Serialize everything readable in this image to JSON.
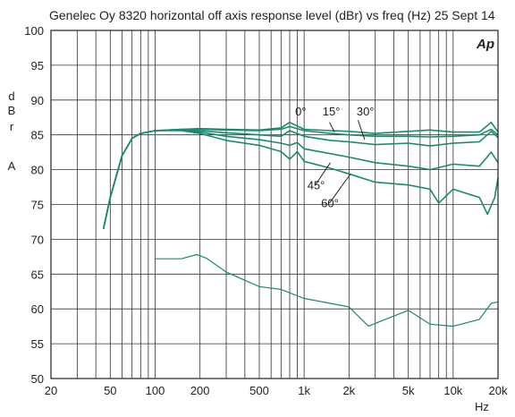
{
  "chart_data": {
    "type": "line",
    "title": "Genelec Oy 8320  horizontal off axis response level (dBr) vs freq (Hz) 25 Sept 14",
    "xlabel": "Hz",
    "ylabel_letters": [
      "d",
      "B",
      "r",
      "A"
    ],
    "logo": "Ap",
    "x_scale": "log",
    "xlim": [
      20,
      20000
    ],
    "ylim": [
      50,
      100
    ],
    "grid": true,
    "line_color": "#1a8a6e",
    "x_ticks": [
      {
        "v": 20,
        "label": "20"
      },
      {
        "v": 50,
        "label": "50"
      },
      {
        "v": 100,
        "label": "100"
      },
      {
        "v": 200,
        "label": "200"
      },
      {
        "v": 500,
        "label": "500"
      },
      {
        "v": 1000,
        "label": "1k"
      },
      {
        "v": 2000,
        "label": "2k"
      },
      {
        "v": 5000,
        "label": "5k"
      },
      {
        "v": 10000,
        "label": "10k"
      },
      {
        "v": 20000,
        "label": "20k"
      }
    ],
    "y_ticks": [
      100,
      95,
      90,
      85,
      80,
      75,
      70,
      65,
      60,
      55,
      50
    ],
    "series": [
      {
        "name": "0°",
        "x": [
          45,
          50,
          60,
          70,
          80,
          100,
          150,
          200,
          300,
          500,
          700,
          800,
          1000,
          1500,
          2000,
          3000,
          5000,
          7000,
          10000,
          15000,
          18000,
          20000
        ],
        "y": [
          71.5,
          76,
          82,
          84.5,
          85.2,
          85.6,
          85.8,
          85.9,
          85.8,
          85.7,
          86.0,
          86.8,
          85.8,
          85.6,
          85.5,
          85.2,
          85.5,
          85.7,
          85.4,
          85.4,
          86.8,
          85.4
        ]
      },
      {
        "name": "15°",
        "x": [
          45,
          50,
          60,
          70,
          80,
          100,
          150,
          200,
          300,
          500,
          700,
          800,
          1000,
          1500,
          2000,
          3000,
          5000,
          7000,
          10000,
          15000,
          18000,
          20000
        ],
        "y": [
          71.5,
          76,
          82,
          84.5,
          85.2,
          85.6,
          85.8,
          85.8,
          85.7,
          85.6,
          85.8,
          86.2,
          85.6,
          85.2,
          85.0,
          84.8,
          84.8,
          84.7,
          84.8,
          85.0,
          85.8,
          85.0
        ]
      },
      {
        "name": "30°",
        "x": [
          45,
          50,
          60,
          70,
          80,
          100,
          150,
          200,
          300,
          500,
          700,
          800,
          1000,
          1500,
          2000,
          3000,
          5000,
          7000,
          10000,
          15000,
          18000,
          20000
        ],
        "y": [
          71.5,
          76,
          82,
          84.5,
          85.2,
          85.6,
          85.7,
          85.6,
          85.3,
          85.0,
          84.8,
          85.6,
          84.8,
          84.2,
          84.0,
          83.6,
          83.8,
          83.4,
          83.8,
          84.0,
          85.5,
          84.6
        ]
      },
      {
        "name": "45°",
        "x": [
          45,
          50,
          60,
          70,
          80,
          100,
          150,
          200,
          300,
          500,
          700,
          800,
          900,
          1000,
          1500,
          2000,
          3000,
          5000,
          7000,
          10000,
          15000,
          18000,
          20000
        ],
        "y": [
          71.5,
          76,
          82,
          84.5,
          85.2,
          85.6,
          85.7,
          85.4,
          84.8,
          84.3,
          83.8,
          83.5,
          83.9,
          83.0,
          82.3,
          81.8,
          81.0,
          80.5,
          80.0,
          80.8,
          80.5,
          82.5,
          81.0
        ]
      },
      {
        "name": "60°",
        "x": [
          45,
          50,
          60,
          70,
          80,
          100,
          150,
          200,
          300,
          500,
          700,
          800,
          900,
          1000,
          1500,
          2000,
          3000,
          5000,
          7000,
          8000,
          10000,
          15000,
          17000,
          19000,
          20000
        ],
        "y": [
          71.5,
          76,
          82,
          84.5,
          85.2,
          85.6,
          85.6,
          85.2,
          84.2,
          83.5,
          82.6,
          81.5,
          82.6,
          81.2,
          80.2,
          79.4,
          78.2,
          77.8,
          77.2,
          75.2,
          77.2,
          76.0,
          73.6,
          76.0,
          78.8
        ]
      },
      {
        "name": "",
        "x": [
          100,
          150,
          190,
          220,
          300,
          500,
          700,
          1000,
          1500,
          2000,
          2700,
          3500,
          5000,
          7000,
          10000,
          15000,
          18000,
          20000
        ],
        "y": [
          67.2,
          67.2,
          67.8,
          67.3,
          65.3,
          63.2,
          62.8,
          61.5,
          60.8,
          60.3,
          57.5,
          58.5,
          59.8,
          57.8,
          57.5,
          58.5,
          60.8,
          61.0
        ]
      }
    ],
    "annotations": [
      {
        "text": "0°",
        "x": 870,
        "y": 87.8
      },
      {
        "text": "15°",
        "x": 1330,
        "y": 87.8
      },
      {
        "text": "30°",
        "x": 2250,
        "y": 87.8
      },
      {
        "text": "45°",
        "x": 1050,
        "y": 77.2
      },
      {
        "text": "60°",
        "x": 1300,
        "y": 74.6
      }
    ]
  }
}
